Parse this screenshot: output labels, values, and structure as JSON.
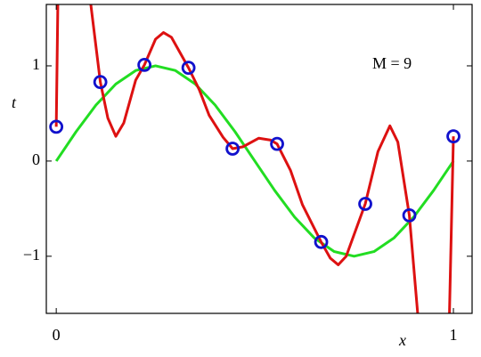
{
  "chart_data": {
    "type": "line",
    "annotation": "M = 9",
    "x_label": "x",
    "y_label": "t",
    "xlim": [
      -0.025,
      1.047
    ],
    "ylim": [
      -1.6,
      1.645
    ],
    "xticks": [
      0,
      1
    ],
    "yticks": [
      {
        "value": -1,
        "label": "−1"
      },
      0,
      1
    ],
    "series": [
      {
        "color": "#22dd22",
        "style": "line",
        "x": [
          0,
          0.05,
          0.1,
          0.15,
          0.2,
          0.25,
          0.3,
          0.35,
          0.4,
          0.45,
          0.5,
          0.55,
          0.6,
          0.65,
          0.7,
          0.75,
          0.8,
          0.85,
          0.9,
          0.95,
          1
        ],
        "values": [
          0,
          0.309,
          0.588,
          0.809,
          0.951,
          1,
          0.951,
          0.809,
          0.588,
          0.309,
          0,
          -0.309,
          -0.588,
          -0.809,
          -0.951,
          -1,
          -0.951,
          -0.809,
          -0.588,
          -0.309,
          0
        ]
      },
      {
        "color": "#dd1111",
        "style": "line",
        "x": [
          0,
          0.004,
          0.04,
          0.087,
          0.111,
          0.13,
          0.15,
          0.17,
          0.2,
          0.222,
          0.25,
          0.27,
          0.29,
          0.333,
          0.36,
          0.385,
          0.42,
          0.444,
          0.47,
          0.51,
          0.54,
          0.556,
          0.59,
          0.62,
          0.667,
          0.69,
          0.71,
          0.73,
          0.778,
          0.81,
          0.84,
          0.86,
          0.889,
          0.91,
          0.95,
          0.99,
          1
        ],
        "values": [
          0.36,
          1.645,
          null,
          1.645,
          0.83,
          0.45,
          0.26,
          0.4,
          0.85,
          1.01,
          1.28,
          1.35,
          1.3,
          0.98,
          0.75,
          0.48,
          0.25,
          0.13,
          0.15,
          0.24,
          0.22,
          0.18,
          -0.1,
          -0.46,
          -0.85,
          -1.02,
          -1.09,
          -1.0,
          -0.45,
          0.1,
          0.37,
          0.2,
          -0.57,
          -1.6,
          null,
          -1.6,
          0.26
        ]
      },
      {
        "color": "#1111cc",
        "style": "scatter",
        "x": [
          0,
          0.111,
          0.222,
          0.333,
          0.444,
          0.556,
          0.667,
          0.778,
          0.889,
          1
        ],
        "values": [
          0.36,
          0.83,
          1.01,
          0.98,
          0.13,
          0.18,
          -0.85,
          -0.45,
          -0.57,
          0.26
        ]
      }
    ]
  }
}
